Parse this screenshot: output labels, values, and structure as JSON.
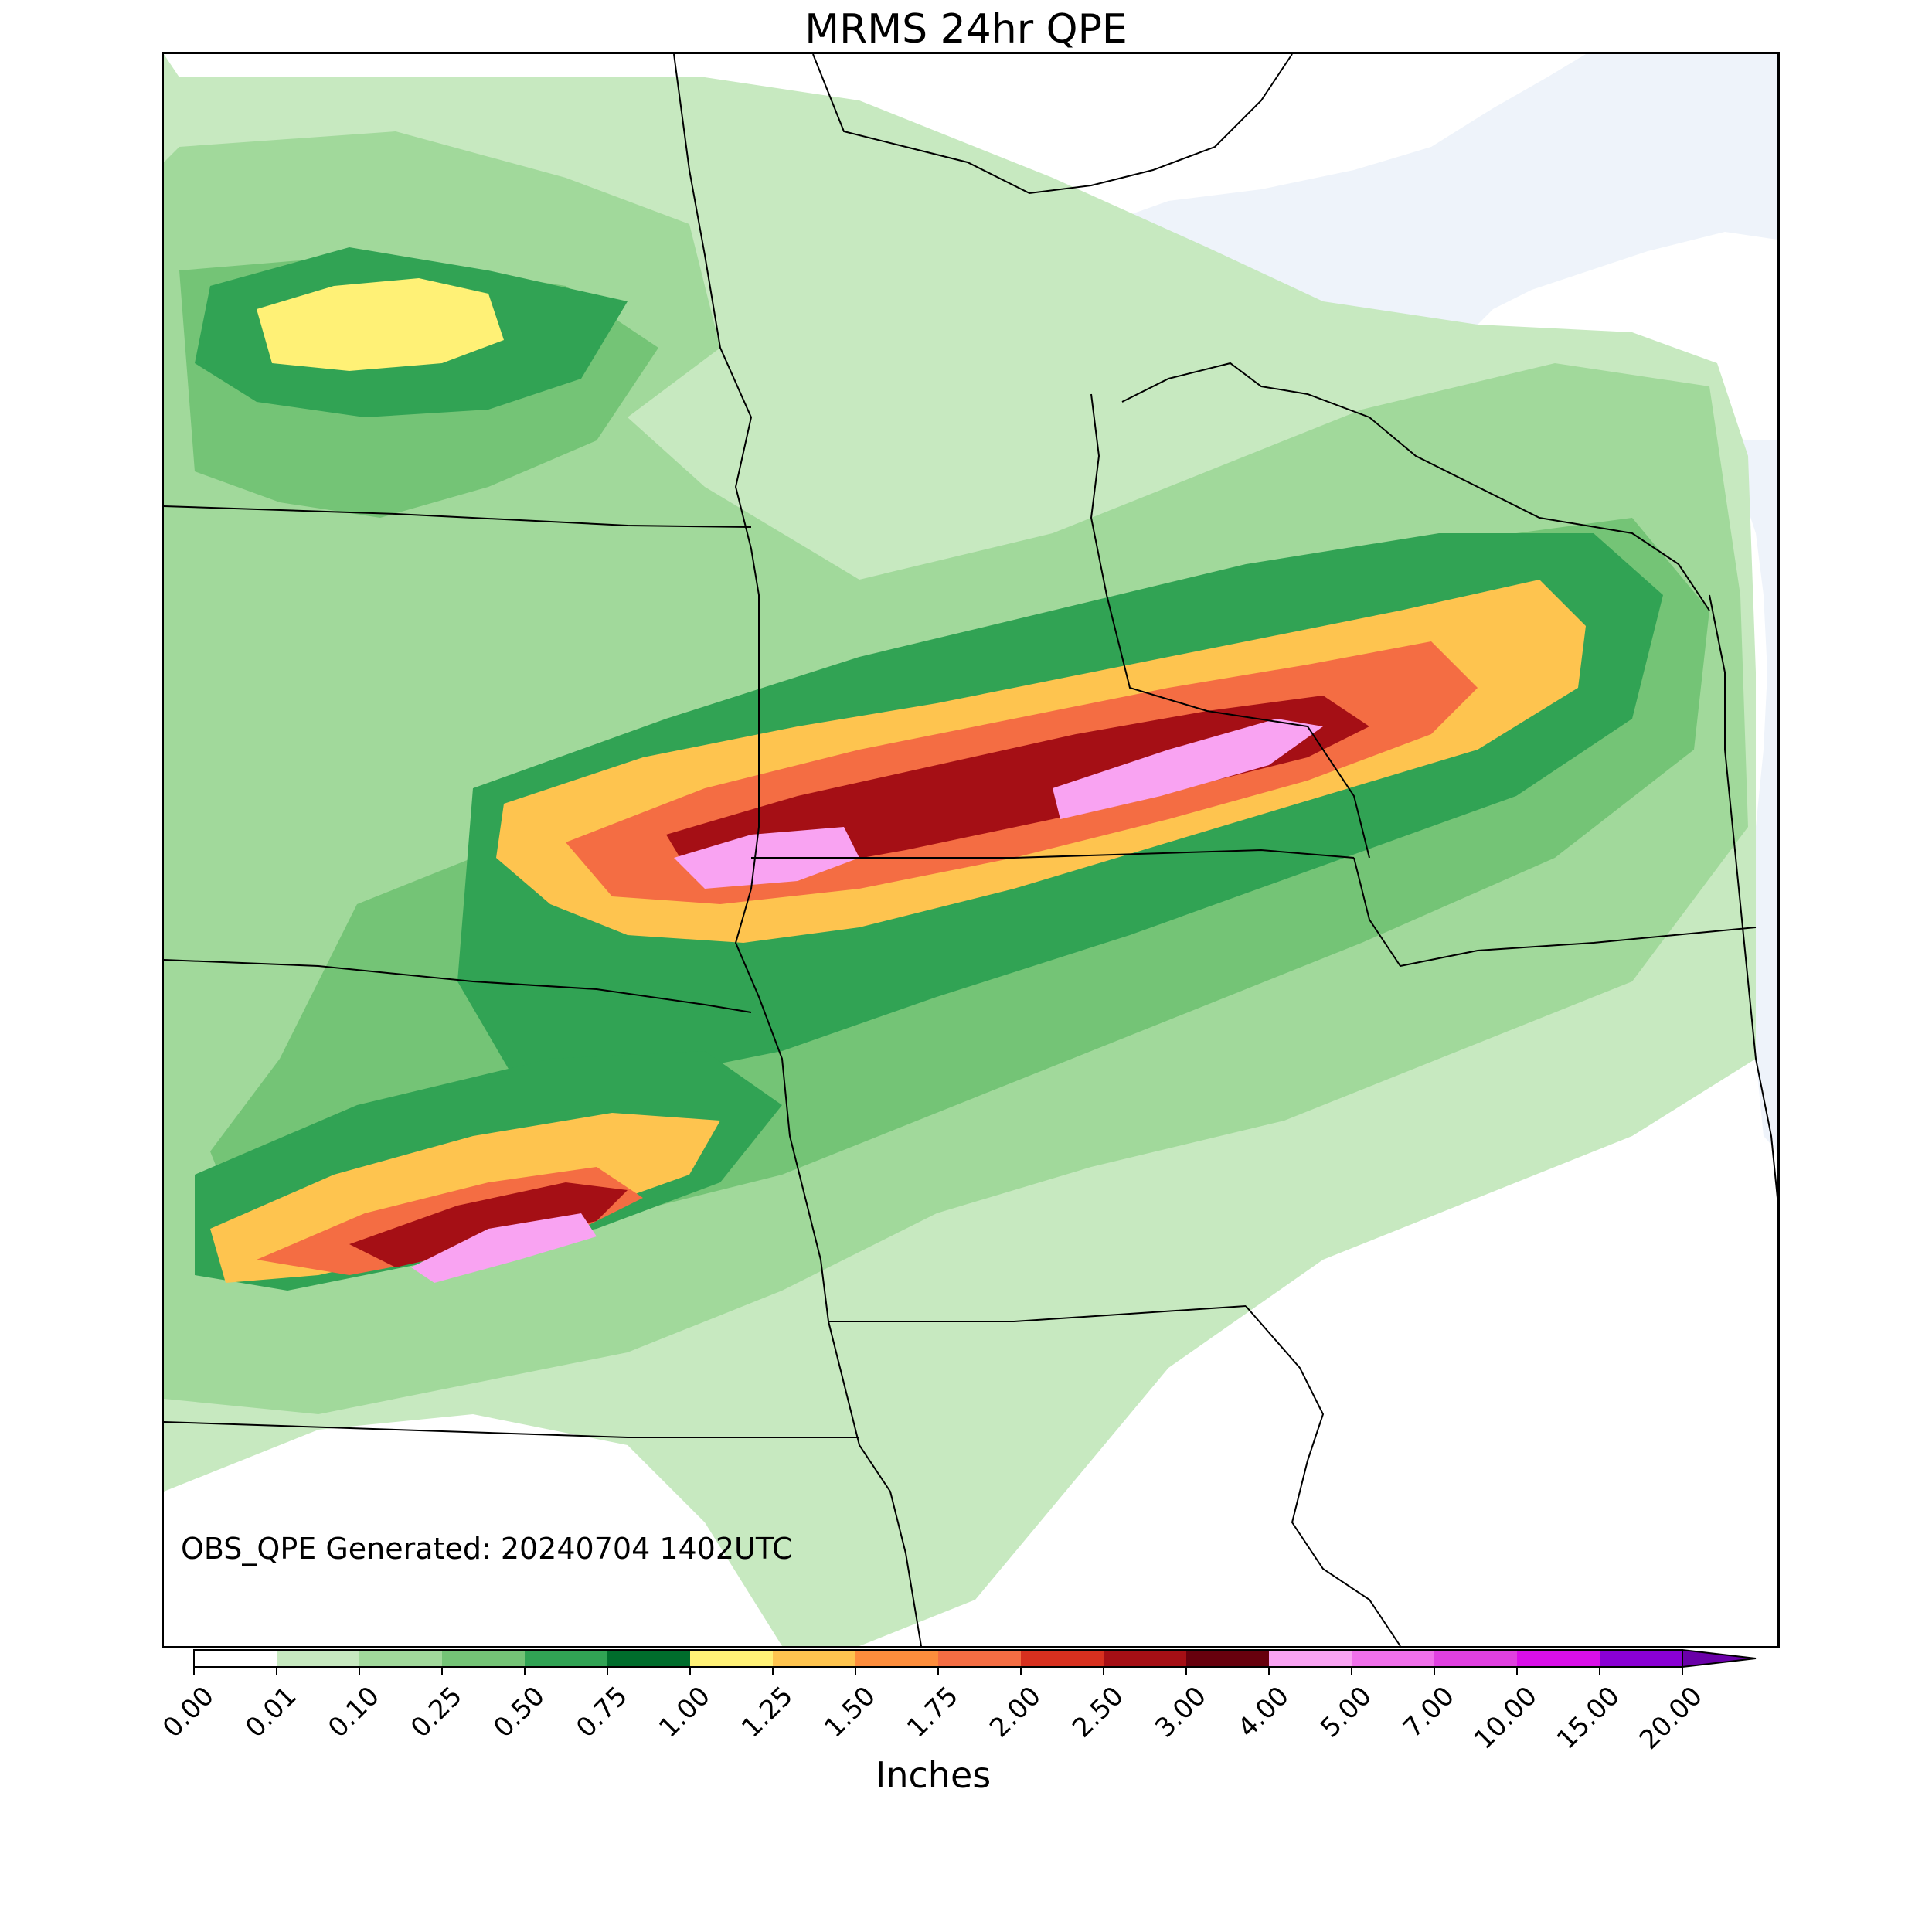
{
  "title": "MRMS 24hr QPE",
  "stamp": "OBS_QPE Generated: 20240704 1402UTC",
  "colorbar": {
    "label": "Inches",
    "ticks": [
      "0.00",
      "0.01",
      "0.10",
      "0.25",
      "0.50",
      "0.75",
      "1.00",
      "1.25",
      "1.50",
      "1.75",
      "2.00",
      "2.50",
      "3.00",
      "4.00",
      "5.00",
      "7.00",
      "10.00",
      "15.00",
      "20.00"
    ],
    "colors": [
      "#ffffff",
      "#c7e9c0",
      "#a1d99b",
      "#74c476",
      "#31a354",
      "#006d2c",
      "#fff176",
      "#fec44f",
      "#fd8d3c",
      "#f46d43",
      "#d7301f",
      "#a50f15",
      "#67000d",
      "#f9a3f2",
      "#f070ea",
      "#e040e0",
      "#d90fe8",
      "#8a00d4"
    ],
    "extend_color": "#6a00a8"
  },
  "lake_color": "#eef3fa"
}
